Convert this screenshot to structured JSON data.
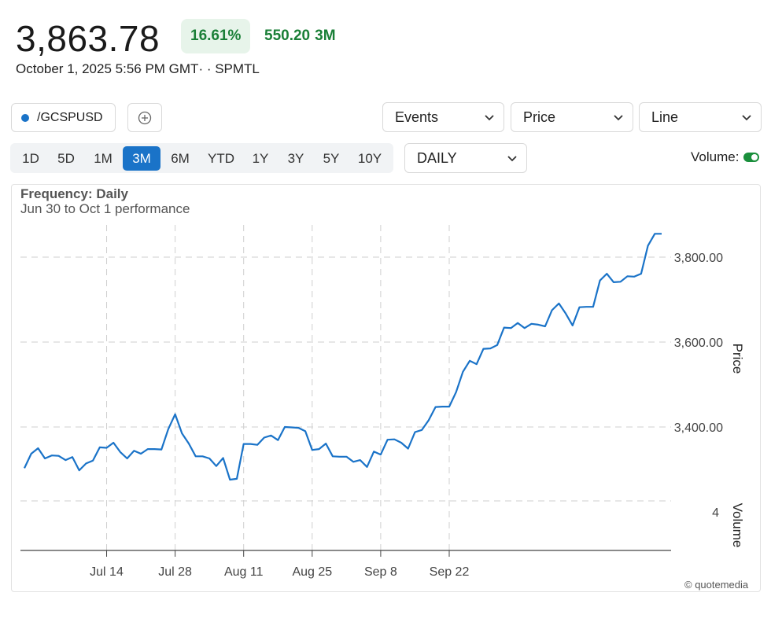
{
  "quote": {
    "last": "3,863.78",
    "pct_change": "16.61%",
    "change": "550.20",
    "change_period": "3M",
    "timestamp": "October 1, 2025 5:56 PM GMT· · SPMTL"
  },
  "symbol": {
    "label": "/GCSPUSD",
    "dot_color": "#1a73c8"
  },
  "add_icon": "plus-circle-icon",
  "dropdowns": {
    "events": "Events",
    "price": "Price",
    "line": "Line",
    "frequency": "DAILY"
  },
  "periods": [
    "1D",
    "5D",
    "1M",
    "3M",
    "6M",
    "YTD",
    "1Y",
    "3Y",
    "5Y",
    "10Y"
  ],
  "active_period": "3M",
  "volume": {
    "label": "Volume:",
    "enabled": true
  },
  "frequency_label": "Frequency: Daily",
  "performance_label": "Jun 30 to Oct 1 performance",
  "copyright": "© quotemedia",
  "colors": {
    "accent": "#1a73c8",
    "positive": "#1a7f37",
    "positive_bg": "#e7f4ea"
  },
  "chart_data": {
    "type": "line",
    "ylabel": "Price",
    "volume_label": "Volume",
    "volume_tick": "4",
    "ylim": [
      3200,
      3900
    ],
    "ytick_values": [
      3400,
      3600,
      3800
    ],
    "ytick_labels": [
      "3,400.00",
      "3,600.00",
      "3,800.00"
    ],
    "xtick_labels": [
      "Jul 14",
      "Jul 28",
      "Aug 11",
      "Aug 25",
      "Sep 8",
      "Sep 22"
    ],
    "xtick_index": [
      12,
      22,
      32,
      42,
      52,
      62
    ],
    "grid": true,
    "series": [
      {
        "values": [
          3303,
          3337,
          3350,
          3326,
          3333,
          3332,
          3322,
          3329,
          3298,
          3314,
          3321,
          3352,
          3351,
          3363,
          3341,
          3326,
          3344,
          3337,
          3348,
          3348,
          3347,
          3395,
          3430,
          3385,
          3361,
          3331,
          3331,
          3326,
          3308,
          3327,
          3276,
          3278,
          3360,
          3360,
          3358,
          3375,
          3380,
          3369,
          3400,
          3399,
          3398,
          3390,
          3346,
          3348,
          3361,
          3331,
          3330,
          3330,
          3318,
          3322,
          3306,
          3342,
          3335,
          3370,
          3371,
          3363,
          3349,
          3388,
          3393,
          3416,
          3447,
          3448,
          3448,
          3482,
          3530,
          3556,
          3548,
          3584,
          3585,
          3593,
          3634,
          3633,
          3645,
          3633,
          3643,
          3641,
          3637,
          3675,
          3691,
          3667,
          3639,
          3682,
          3683,
          3683,
          3745,
          3761,
          3741,
          3742,
          3755,
          3754,
          3761,
          3827,
          3855,
          3855
        ]
      }
    ]
  }
}
